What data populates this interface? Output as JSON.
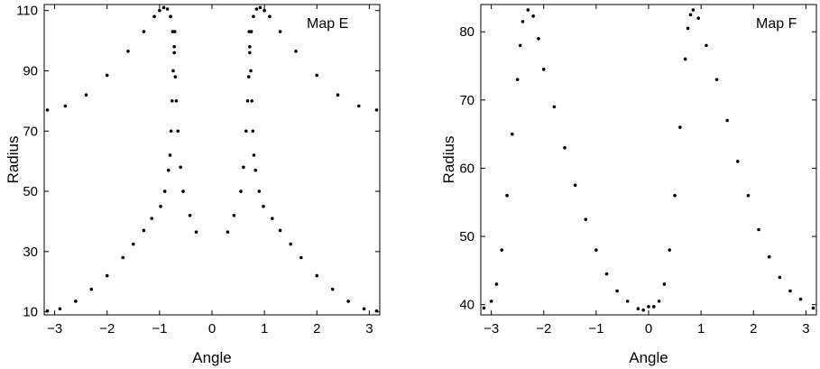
{
  "chart_data": [
    {
      "type": "scatter",
      "annotation": "Map E",
      "xlabel": "Angle",
      "ylabel": "Radius",
      "xlim": [
        -3.2,
        3.2
      ],
      "ylim": [
        9,
        112
      ],
      "xticks": [
        -3,
        -2,
        -1,
        0,
        1,
        2,
        3
      ],
      "yticks": [
        10,
        30,
        50,
        70,
        90,
        110
      ],
      "grid": false,
      "marker_color": "#000000",
      "series": [
        {
          "points": [
            [
              -3.14,
              77.0
            ],
            [
              -2.8,
              78.3
            ],
            [
              -2.4,
              82.0
            ],
            [
              -2.0,
              88.5
            ],
            [
              -1.6,
              96.5
            ],
            [
              -1.3,
              103.0
            ],
            [
              -1.1,
              108.0
            ],
            [
              -1.0,
              110.0
            ],
            [
              -0.92,
              111.0
            ],
            [
              -0.85,
              110.5
            ],
            [
              -0.79,
              108.0
            ],
            [
              -0.75,
              103.0
            ],
            [
              -0.72,
              96.0
            ],
            [
              -0.7,
              88.0
            ],
            [
              -0.68,
              80.0
            ],
            [
              -0.65,
              70.0
            ],
            [
              -0.6,
              58.0
            ],
            [
              -0.55,
              50.0
            ],
            [
              -0.42,
              42.0
            ],
            [
              -0.3,
              36.5
            ],
            [
              0.3,
              36.5
            ],
            [
              0.42,
              42.0
            ],
            [
              0.55,
              50.0
            ],
            [
              0.6,
              58.0
            ],
            [
              0.65,
              70.0
            ],
            [
              0.68,
              80.0
            ],
            [
              0.7,
              88.0
            ],
            [
              0.72,
              96.0
            ],
            [
              0.75,
              103.0
            ],
            [
              0.79,
              108.0
            ],
            [
              0.85,
              110.5
            ],
            [
              0.92,
              111.0
            ],
            [
              1.0,
              110.0
            ],
            [
              1.1,
              108.0
            ],
            [
              1.3,
              103.0
            ],
            [
              1.6,
              96.5
            ],
            [
              2.0,
              88.5
            ],
            [
              2.4,
              82.0
            ],
            [
              2.8,
              78.3
            ],
            [
              3.14,
              77.0
            ],
            [
              -3.14,
              10.3
            ],
            [
              -2.9,
              11.0
            ],
            [
              -2.6,
              13.5
            ],
            [
              -2.3,
              17.5
            ],
            [
              -2.0,
              22.0
            ],
            [
              -1.7,
              28.0
            ],
            [
              -1.5,
              32.5
            ],
            [
              -1.3,
              37.0
            ],
            [
              -1.15,
              41.0
            ],
            [
              -0.98,
              45.0
            ],
            [
              -0.9,
              50.0
            ],
            [
              -0.83,
              57.0
            ],
            [
              -0.8,
              62.0
            ],
            [
              -0.78,
              70.0
            ],
            [
              -0.76,
              80.0
            ],
            [
              -0.74,
              90.0
            ],
            [
              -0.72,
              98.0
            ],
            [
              -0.71,
              103.0
            ],
            [
              0.71,
              103.0
            ],
            [
              0.72,
              98.0
            ],
            [
              0.74,
              90.0
            ],
            [
              0.76,
              80.0
            ],
            [
              0.78,
              70.0
            ],
            [
              0.8,
              62.0
            ],
            [
              0.83,
              57.0
            ],
            [
              0.9,
              50.0
            ],
            [
              0.98,
              45.0
            ],
            [
              1.15,
              41.0
            ],
            [
              1.3,
              37.0
            ],
            [
              1.5,
              32.5
            ],
            [
              1.7,
              28.0
            ],
            [
              2.0,
              22.0
            ],
            [
              2.3,
              17.5
            ],
            [
              2.6,
              13.5
            ],
            [
              2.9,
              11.0
            ],
            [
              3.14,
              10.3
            ]
          ]
        }
      ]
    },
    {
      "type": "scatter",
      "annotation": "Map F",
      "xlabel": "Angle",
      "ylabel": "Radius",
      "xlim": [
        -3.2,
        3.2
      ],
      "ylim": [
        38.5,
        84
      ],
      "xticks": [
        -3,
        -2,
        -1,
        0,
        1,
        2,
        3
      ],
      "yticks": [
        40,
        50,
        60,
        70,
        80
      ],
      "grid": false,
      "marker_color": "#000000",
      "series": [
        {
          "points": [
            [
              -3.14,
              39.5
            ],
            [
              -3.0,
              40.5
            ],
            [
              -2.9,
              43.0
            ],
            [
              -2.8,
              48.0
            ],
            [
              -2.7,
              56.0
            ],
            [
              -2.6,
              65.0
            ],
            [
              -2.5,
              73.0
            ],
            [
              -2.45,
              78.0
            ],
            [
              -2.4,
              81.5
            ],
            [
              -2.3,
              83.2
            ],
            [
              -2.2,
              82.3
            ],
            [
              -2.1,
              79.0
            ],
            [
              -2.0,
              74.5
            ],
            [
              -1.8,
              69.0
            ],
            [
              -1.6,
              63.0
            ],
            [
              -1.4,
              57.5
            ],
            [
              -1.2,
              52.5
            ],
            [
              -1.0,
              48.0
            ],
            [
              -0.8,
              44.5
            ],
            [
              -0.6,
              42.0
            ],
            [
              -0.4,
              40.5
            ],
            [
              -0.2,
              39.4
            ],
            [
              -0.1,
              39.2
            ],
            [
              0.0,
              39.7
            ],
            [
              0.1,
              39.7
            ],
            [
              0.2,
              40.5
            ],
            [
              0.3,
              43.0
            ],
            [
              0.4,
              48.0
            ],
            [
              0.5,
              56.0
            ],
            [
              0.6,
              66.0
            ],
            [
              0.7,
              76.0
            ],
            [
              0.75,
              80.5
            ],
            [
              0.8,
              82.5
            ],
            [
              0.85,
              83.2
            ],
            [
              0.95,
              82.0
            ],
            [
              1.1,
              78.0
            ],
            [
              1.3,
              73.0
            ],
            [
              1.5,
              67.0
            ],
            [
              1.7,
              61.0
            ],
            [
              1.9,
              56.0
            ],
            [
              2.1,
              51.0
            ],
            [
              2.3,
              47.0
            ],
            [
              2.5,
              44.0
            ],
            [
              2.7,
              42.0
            ],
            [
              2.9,
              40.8
            ],
            [
              3.14,
              39.5
            ]
          ]
        }
      ]
    }
  ]
}
